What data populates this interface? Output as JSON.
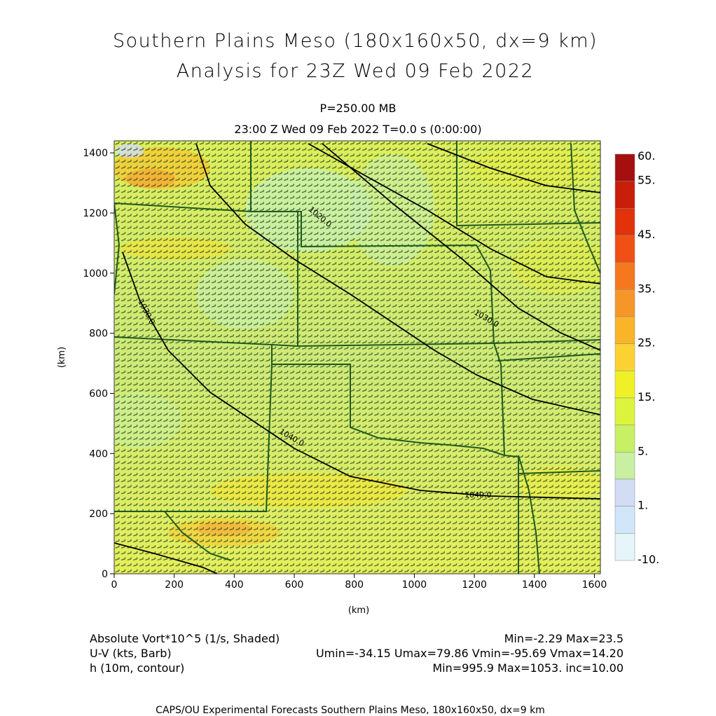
{
  "header": {
    "title_line1": "Southern Plains Meso (180x160x50, dx=9 km)",
    "title_line2": "Analysis for 23Z Wed 09 Feb 2022",
    "level": "P=250.00 MB",
    "time_line": "23:00 Z Wed 09 Feb 2022    T=0.0 s (0:00:00)"
  },
  "axes": {
    "x_label": "(km)",
    "y_label": "(km)",
    "x_ticks": [
      "0",
      "200",
      "400",
      "600",
      "800",
      "1000",
      "1200",
      "1400",
      "1600"
    ],
    "y_ticks": [
      "0",
      "200",
      "400",
      "600",
      "800",
      "1000",
      "1200",
      "1400"
    ],
    "x_range": [
      0,
      1620
    ],
    "y_range": [
      0,
      1440
    ]
  },
  "colorbar": {
    "labels": [
      "60.",
      "55.",
      "45.",
      "35.",
      "25.",
      "15.",
      "5.",
      "1.",
      "-10."
    ],
    "colors": [
      "#a50f0f",
      "#c81e0a",
      "#e1320a",
      "#f05014",
      "#f5781e",
      "#f79628",
      "#fab428",
      "#fcd232",
      "#f0f028",
      "#dcf53c",
      "#c8f064",
      "#c8f0a0",
      "#d2dcf5",
      "#d2e6fa",
      "#e6f5fa"
    ]
  },
  "contours": {
    "labels": [
      "1020.0",
      "1030.0",
      "1030.0",
      "1040.0",
      "1040.0"
    ]
  },
  "fields": {
    "shaded_label": "Absolute Vort*10^5 (1/s, Shaded)",
    "shaded_stats": "Min=-2.29 Max=23.5",
    "barb_label": "U-V (kts, Barb)",
    "barb_stats": "Umin=-34.15 Umax=79.86 Vmin=-95.69 Vmax=14.20",
    "contour_label": "h (10m, contour)",
    "contour_stats": "Min=995.9 Max=1053. inc=10.00"
  },
  "credit": "CAPS/OU Experimental Forecasts  Southern Plains Meso, 180x160x50, dx=9 km"
}
